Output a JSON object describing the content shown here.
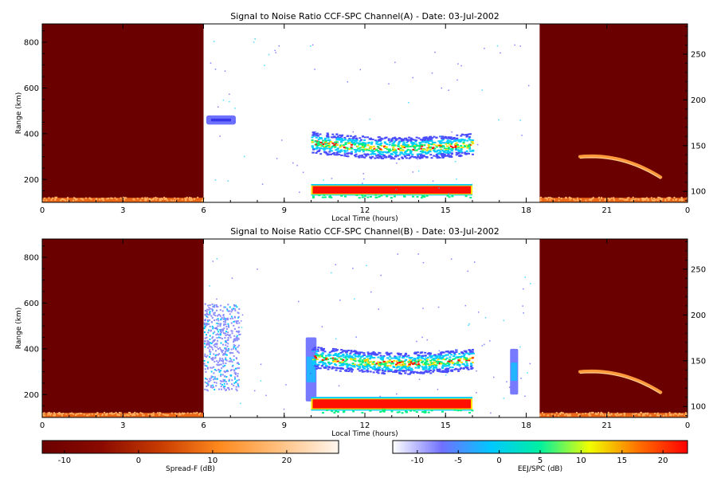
{
  "chart_data": [
    {
      "type": "heatmap",
      "title": "Signal to Noise Ratio CCF-SPC Channel(A) - Date: 03-Jul-2002",
      "xlabel": "Local Time (hours)",
      "ylabel": "Range (km)",
      "xlim": [
        0,
        24
      ],
      "ylim": [
        100,
        880
      ],
      "x_ticks": [
        "0",
        "3",
        "6",
        "9",
        "12",
        "15",
        "18",
        "21",
        "0"
      ],
      "y_ticks": [
        200,
        400,
        600,
        800
      ],
      "y2lim": [
        88,
        283
      ],
      "y2_ticks": [
        100,
        150,
        200,
        250
      ],
      "night_spans_hours": [
        [
          0,
          6
        ],
        [
          18.5,
          24
        ]
      ],
      "features": [
        {
          "label": "spread-F base trace",
          "x_range": [
            0,
            6
          ],
          "range_km": [
            100,
            120
          ]
        },
        {
          "label": "spread-F base trace",
          "x_range": [
            18.5,
            24
          ],
          "range_km": [
            100,
            125
          ]
        },
        {
          "label": "spread-F ascending trace",
          "x_range": [
            20,
            23
          ],
          "range_km": [
            200,
            320
          ]
        },
        {
          "label": "echo patch",
          "x_range": [
            6.1,
            7.2
          ],
          "range_km": [
            440,
            480
          ]
        },
        {
          "label": "150 km echo layer",
          "x_range": [
            10,
            16
          ],
          "range_km": [
            290,
            420
          ]
        },
        {
          "label": "EEJ echo band",
          "x_range": [
            10,
            16
          ],
          "range_km": [
            130,
            180
          ]
        }
      ]
    },
    {
      "type": "heatmap",
      "title": "Signal to Noise Ratio CCF-SPC Channel(B) - Date: 03-Jul-2002",
      "xlabel": "Local Time (hours)",
      "ylabel": "Range (km)",
      "xlim": [
        0,
        24
      ],
      "ylim": [
        100,
        880
      ],
      "x_ticks": [
        "0",
        "3",
        "6",
        "9",
        "12",
        "15",
        "18",
        "21",
        "0"
      ],
      "y_ticks": [
        200,
        400,
        600,
        800
      ],
      "y2lim": [
        88,
        283
      ],
      "y2_ticks": [
        100,
        150,
        200,
        250
      ],
      "night_spans_hours": [
        [
          0,
          6
        ],
        [
          18.5,
          24
        ]
      ],
      "features": [
        {
          "label": "spread-F base trace",
          "x_range": [
            0,
            6
          ],
          "range_km": [
            100,
            120
          ]
        },
        {
          "label": "spread-F base trace",
          "x_range": [
            18.5,
            24
          ],
          "range_km": [
            100,
            125
          ]
        },
        {
          "label": "spread-F ascending trace",
          "x_range": [
            20,
            23
          ],
          "range_km": [
            200,
            320
          ]
        },
        {
          "label": "broad echo plume",
          "x_range": [
            6,
            7.3
          ],
          "range_km": [
            220,
            600
          ]
        },
        {
          "label": "vertical echo streak",
          "x_range": [
            9.8,
            10.2
          ],
          "range_km": [
            170,
            450
          ]
        },
        {
          "label": "vertical echo streak",
          "x_range": [
            17.4,
            17.7
          ],
          "range_km": [
            200,
            400
          ]
        },
        {
          "label": "150 km echo layer",
          "x_range": [
            10,
            16
          ],
          "range_km": [
            290,
            420
          ]
        },
        {
          "label": "EEJ echo band",
          "x_range": [
            10,
            16
          ],
          "range_km": [
            130,
            190
          ]
        }
      ]
    }
  ],
  "colorbars": [
    {
      "label": "Spread-F (dB)",
      "range": [
        -13,
        27
      ],
      "ticks": [
        -10,
        0,
        10,
        20
      ],
      "colors": [
        "#6b0000",
        "#8a0a00",
        "#c83c00",
        "#ff8a1e",
        "#ffc080",
        "#fff6ee"
      ]
    },
    {
      "label": "EEJ/SPC (dB)",
      "range": [
        -13,
        23
      ],
      "ticks": [
        -10,
        -5,
        0,
        5,
        10,
        15,
        20
      ],
      "colors": [
        "#ffffff",
        "#7070ff",
        "#00c8ff",
        "#00f0a0",
        "#f0ff00",
        "#ff7000",
        "#ff0000"
      ]
    }
  ],
  "colors": {
    "night": "#6b0000",
    "trace": "#ff7a1e",
    "blue": "#4a4cff",
    "cyan": "#00ccff",
    "green": "#00f080",
    "yellow": "#ffe000",
    "red": "#ff1000"
  }
}
